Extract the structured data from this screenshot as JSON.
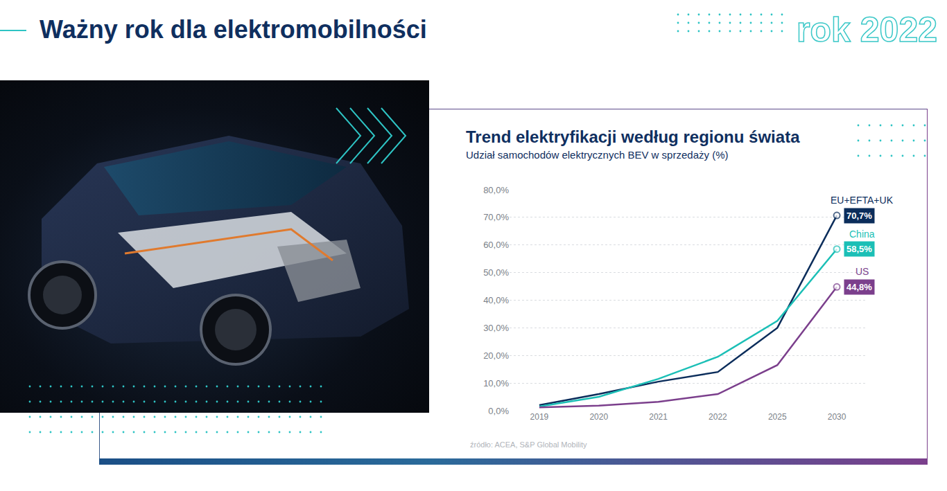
{
  "header": {
    "title": "Ważny rok dla elektromobilności",
    "badge": "rok 2022"
  },
  "chart_data": {
    "type": "line",
    "title": "Trend elektryfikacji według regionu świata",
    "subtitle": "Udział samochodów elektrycznych BEV w sprzedaży (%)",
    "source": "źródło: ACEA, S&P Global Mobility",
    "categories": [
      "2019",
      "2020",
      "2021",
      "2022",
      "2025",
      "2030"
    ],
    "ylim": [
      0,
      80
    ],
    "yticks": [
      {
        "value": 0,
        "label": "0,0%"
      },
      {
        "value": 10,
        "label": "10,0%"
      },
      {
        "value": 20,
        "label": "20,0%"
      },
      {
        "value": 30,
        "label": "30,0%"
      },
      {
        "value": 40,
        "label": "40,0%"
      },
      {
        "value": 50,
        "label": "50,0%"
      },
      {
        "value": 60,
        "label": "60,0%"
      },
      {
        "value": 70,
        "label": "70,0%"
      },
      {
        "value": 80,
        "label": "80,0%"
      }
    ],
    "grid": true,
    "series": [
      {
        "name": "EU+EFTA+UK",
        "color": "#0b2d5b",
        "values": [
          2.0,
          6.0,
          10.5,
          14.0,
          30.0,
          70.7
        ],
        "value_labels": [
          null,
          null,
          null,
          null,
          null,
          "70,7%"
        ]
      },
      {
        "name": "China",
        "color": "#1bbfb6",
        "values": [
          1.5,
          5.0,
          11.5,
          19.5,
          32.5,
          58.5
        ],
        "value_labels": [
          null,
          null,
          null,
          null,
          null,
          "58,5%"
        ]
      },
      {
        "name": "US",
        "color": "#7b3f8c",
        "values": [
          1.2,
          1.8,
          3.2,
          6.0,
          16.5,
          44.8
        ],
        "value_labels": [
          null,
          null,
          null,
          null,
          null,
          "44,8%"
        ]
      }
    ]
  }
}
